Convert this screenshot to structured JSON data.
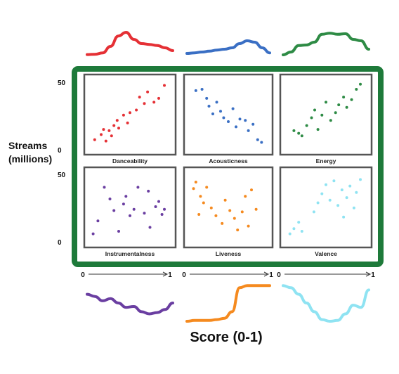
{
  "chart_data": {
    "type": "scatter",
    "xlabel": "Score (0-1)",
    "ylabel_lines": [
      "Streams",
      "(millions)"
    ],
    "xlim": [
      0,
      1
    ],
    "ylim": [
      0,
      50
    ],
    "y_ticks": [
      "50",
      "0"
    ],
    "x_ticks": [
      "0",
      "1"
    ],
    "panels": [
      {
        "name": "Danceability",
        "color": "#e53035",
        "points": [
          [
            0.06,
            5
          ],
          [
            0.14,
            9
          ],
          [
            0.17,
            13
          ],
          [
            0.2,
            4
          ],
          [
            0.24,
            12
          ],
          [
            0.27,
            8
          ],
          [
            0.3,
            16
          ],
          [
            0.34,
            20
          ],
          [
            0.36,
            14
          ],
          [
            0.42,
            24
          ],
          [
            0.47,
            18
          ],
          [
            0.5,
            26
          ],
          [
            0.58,
            28
          ],
          [
            0.62,
            38
          ],
          [
            0.68,
            33
          ],
          [
            0.72,
            42
          ],
          [
            0.8,
            34
          ],
          [
            0.86,
            37
          ],
          [
            0.93,
            47
          ]
        ],
        "density": [
          0.06,
          0.07,
          0.12,
          0.35,
          0.72,
          0.85,
          0.6,
          0.45,
          0.42,
          0.38,
          0.3,
          0.2
        ]
      },
      {
        "name": "Acousticness",
        "color": "#3a6fc4",
        "points": [
          [
            0.08,
            43
          ],
          [
            0.16,
            44
          ],
          [
            0.22,
            37
          ],
          [
            0.25,
            31
          ],
          [
            0.3,
            25
          ],
          [
            0.35,
            34
          ],
          [
            0.4,
            27
          ],
          [
            0.44,
            22
          ],
          [
            0.5,
            19
          ],
          [
            0.56,
            29
          ],
          [
            0.6,
            15
          ],
          [
            0.65,
            21
          ],
          [
            0.72,
            20
          ],
          [
            0.76,
            12
          ],
          [
            0.82,
            17
          ],
          [
            0.88,
            5
          ],
          [
            0.93,
            3
          ]
        ],
        "density": [
          0.1,
          0.12,
          0.15,
          0.18,
          0.22,
          0.25,
          0.3,
          0.45,
          0.55,
          0.5,
          0.3,
          0.12
        ]
      },
      {
        "name": "Energy",
        "color": "#2e8b45",
        "points": [
          [
            0.1,
            12
          ],
          [
            0.16,
            10
          ],
          [
            0.2,
            8
          ],
          [
            0.26,
            16
          ],
          [
            0.32,
            22
          ],
          [
            0.36,
            28
          ],
          [
            0.4,
            13
          ],
          [
            0.45,
            24
          ],
          [
            0.5,
            34
          ],
          [
            0.56,
            20
          ],
          [
            0.62,
            26
          ],
          [
            0.66,
            32
          ],
          [
            0.72,
            38
          ],
          [
            0.76,
            30
          ],
          [
            0.82,
            36
          ],
          [
            0.88,
            44
          ],
          [
            0.93,
            48
          ]
        ],
        "density": [
          0.05,
          0.15,
          0.38,
          0.4,
          0.5,
          0.78,
          0.82,
          0.78,
          0.8,
          0.6,
          0.55,
          0.25
        ]
      },
      {
        "name": "Instrumentalness",
        "color": "#6a3ea1",
        "points": [
          [
            0.04,
            4
          ],
          [
            0.1,
            14
          ],
          [
            0.18,
            40
          ],
          [
            0.25,
            31
          ],
          [
            0.3,
            22
          ],
          [
            0.36,
            6
          ],
          [
            0.42,
            27
          ],
          [
            0.45,
            33
          ],
          [
            0.5,
            18
          ],
          [
            0.55,
            23
          ],
          [
            0.6,
            40
          ],
          [
            0.68,
            20
          ],
          [
            0.73,
            37
          ],
          [
            0.75,
            9
          ],
          [
            0.82,
            25
          ],
          [
            0.86,
            29
          ],
          [
            0.9,
            19
          ],
          [
            0.93,
            23
          ]
        ],
        "density": [
          0.7,
          0.65,
          0.55,
          0.6,
          0.5,
          0.4,
          0.42,
          0.3,
          0.25,
          0.28,
          0.35,
          0.5
        ]
      },
      {
        "name": "Liveness",
        "color": "#f58a1f",
        "points": [
          [
            0.05,
            39
          ],
          [
            0.08,
            44
          ],
          [
            0.14,
            33
          ],
          [
            0.18,
            28
          ],
          [
            0.22,
            40
          ],
          [
            0.28,
            24
          ],
          [
            0.34,
            18
          ],
          [
            0.12,
            19
          ],
          [
            0.42,
            12
          ],
          [
            0.46,
            30
          ],
          [
            0.52,
            22
          ],
          [
            0.58,
            16
          ],
          [
            0.62,
            7
          ],
          [
            0.68,
            21
          ],
          [
            0.72,
            33
          ],
          [
            0.76,
            10
          ],
          [
            0.8,
            38
          ],
          [
            0.86,
            23
          ]
        ],
        "density": [
          0.08,
          0.1,
          0.1,
          0.1,
          0.12,
          0.15,
          0.3,
          0.85,
          0.9,
          0.9,
          0.9,
          0.9
        ]
      },
      {
        "name": "Valence",
        "color": "#8fe3f2",
        "points": [
          [
            0.05,
            4
          ],
          [
            0.1,
            8
          ],
          [
            0.16,
            13
          ],
          [
            0.2,
            6
          ],
          [
            0.35,
            21
          ],
          [
            0.4,
            28
          ],
          [
            0.45,
            35
          ],
          [
            0.5,
            42
          ],
          [
            0.55,
            30
          ],
          [
            0.6,
            45
          ],
          [
            0.65,
            26
          ],
          [
            0.7,
            38
          ],
          [
            0.72,
            17
          ],
          [
            0.76,
            32
          ],
          [
            0.8,
            41
          ],
          [
            0.85,
            24
          ],
          [
            0.88,
            36
          ],
          [
            0.93,
            46
          ]
        ],
        "density": [
          0.9,
          0.85,
          0.7,
          0.5,
          0.3,
          0.12,
          0.08,
          0.1,
          0.25,
          0.45,
          0.4,
          0.8
        ]
      }
    ]
  }
}
